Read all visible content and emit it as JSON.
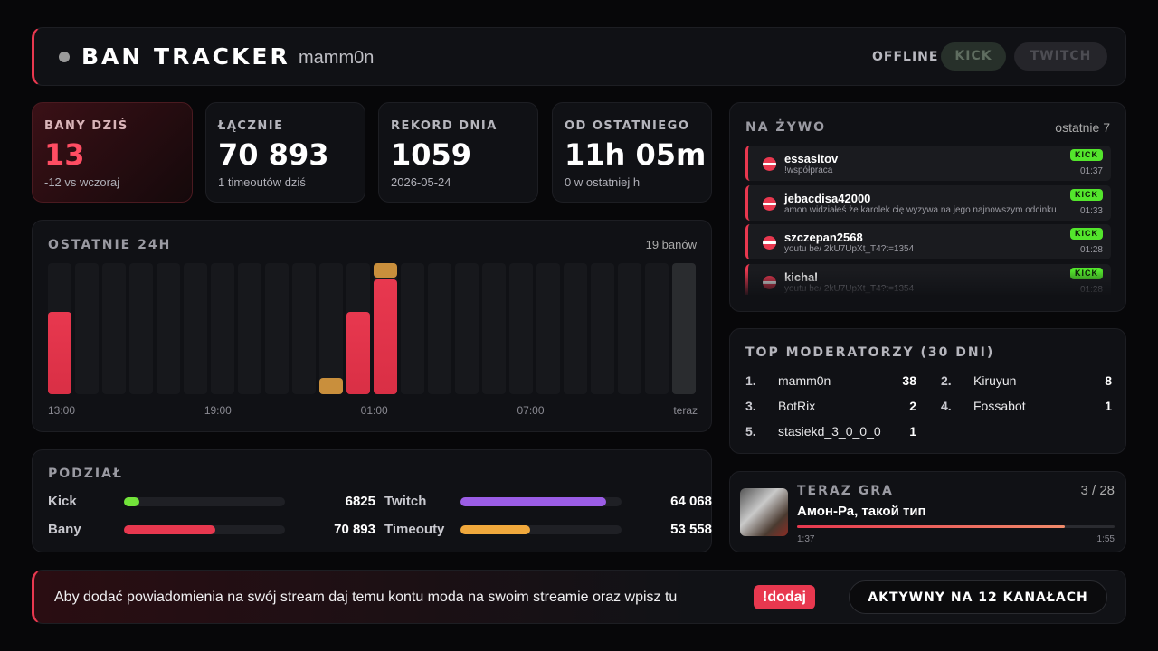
{
  "header": {
    "title": "BAN TRACKER",
    "channel": "mamm0n",
    "status": "OFFLINE",
    "platforms": [
      "KICK",
      "TWITCH"
    ]
  },
  "stats": [
    {
      "label": "BANY DZIŚ",
      "value": "13",
      "note": "-12 vs wczoraj"
    },
    {
      "label": "ŁĄCZNIE",
      "value": "70 893",
      "note": "1 timeoutów dziś"
    },
    {
      "label": "REKORD DNIA",
      "value": "1059",
      "note": "2026-05-24"
    },
    {
      "label": "OD OSTATNIEGO",
      "value": "11h 05m",
      "note": "0 w ostatniej h"
    }
  ],
  "activity": {
    "title": "OSTATNIE 24H",
    "summary": "19 banów",
    "categories": [
      "13:00",
      null,
      null,
      null,
      null,
      null,
      "19:00",
      null,
      null,
      null,
      null,
      null,
      "01:00",
      null,
      null,
      null,
      null,
      null,
      "07:00",
      null,
      null,
      null,
      null,
      "teraz"
    ],
    "bans": [
      5,
      0,
      0,
      0,
      0,
      0,
      0,
      0,
      0,
      0,
      0,
      5,
      7,
      0,
      0,
      0,
      0,
      0,
      0,
      0,
      0,
      0,
      0,
      0
    ],
    "timeouts": [
      0,
      0,
      0,
      0,
      0,
      0,
      0,
      0,
      0,
      0,
      1,
      0,
      1,
      0,
      0,
      0,
      0,
      0,
      0,
      0,
      0,
      0,
      0,
      0
    ],
    "ylim": [
      0,
      8
    ],
    "colors": {
      "bans": "#e8384f",
      "timeouts": "#c98f3c"
    }
  },
  "split": {
    "title": "PODZIAŁ",
    "rows": [
      [
        {
          "label": "Kick",
          "value": 6825,
          "color": "#72e33a"
        },
        {
          "label": "Twitch",
          "value": 64068,
          "value_label": "64 068",
          "color": "#9b5de5"
        }
      ],
      [
        {
          "label": "Bany",
          "value": 70893,
          "value_label": "70 893",
          "color": "#e8384f"
        },
        {
          "label": "Timeouty",
          "value": 53558,
          "value_label": "53 558",
          "color": "#f0a83c"
        }
      ]
    ]
  },
  "live": {
    "title": "NA ŻYWO",
    "summary": "ostatnie 7",
    "items": [
      {
        "user": "essasitov",
        "message": "!współpraca",
        "platform": "KICK",
        "time": "01:37"
      },
      {
        "user": "jebacdisa42000",
        "message": "amon widziałeś że karolek cię wyzywa na jego najnowszym odcinku",
        "platform": "KICK",
        "time": "01:33"
      },
      {
        "user": "szczepan2568",
        "message": "youtu be/ 2kU7UpXt_T4?t=1354",
        "platform": "KICK",
        "time": "01:28"
      },
      {
        "user": "kichal",
        "message": "youtu be/ 2kU7UpXt_T4?t=1354",
        "platform": "KICK",
        "time": "01:28"
      }
    ]
  },
  "moderators": {
    "title": "TOP MODERATORZY (30 DNI)",
    "items": [
      {
        "rank": "1.",
        "name": "mamm0n",
        "count": "38"
      },
      {
        "rank": "2.",
        "name": "Kiruyun",
        "count": "8"
      },
      {
        "rank": "3.",
        "name": "BotRix",
        "count": "2"
      },
      {
        "rank": "4.",
        "name": "Fossabot",
        "count": "1"
      },
      {
        "rank": "5.",
        "name": "stasiekd_3_0_0_0",
        "count": "1"
      }
    ]
  },
  "now_playing": {
    "title": "TERAZ GRA",
    "position": "3 / 28",
    "track": "Амон-Ра, такой тип",
    "elapsed": "1:37",
    "duration": "1:55"
  },
  "footer": {
    "message": "Aby dodać powiadomienia na swój stream daj temu kontu moda na swoim streamie oraz wpisz tu",
    "command": "!dodaj",
    "status": "AKTYWNY NA 12 KANAŁACH"
  }
}
